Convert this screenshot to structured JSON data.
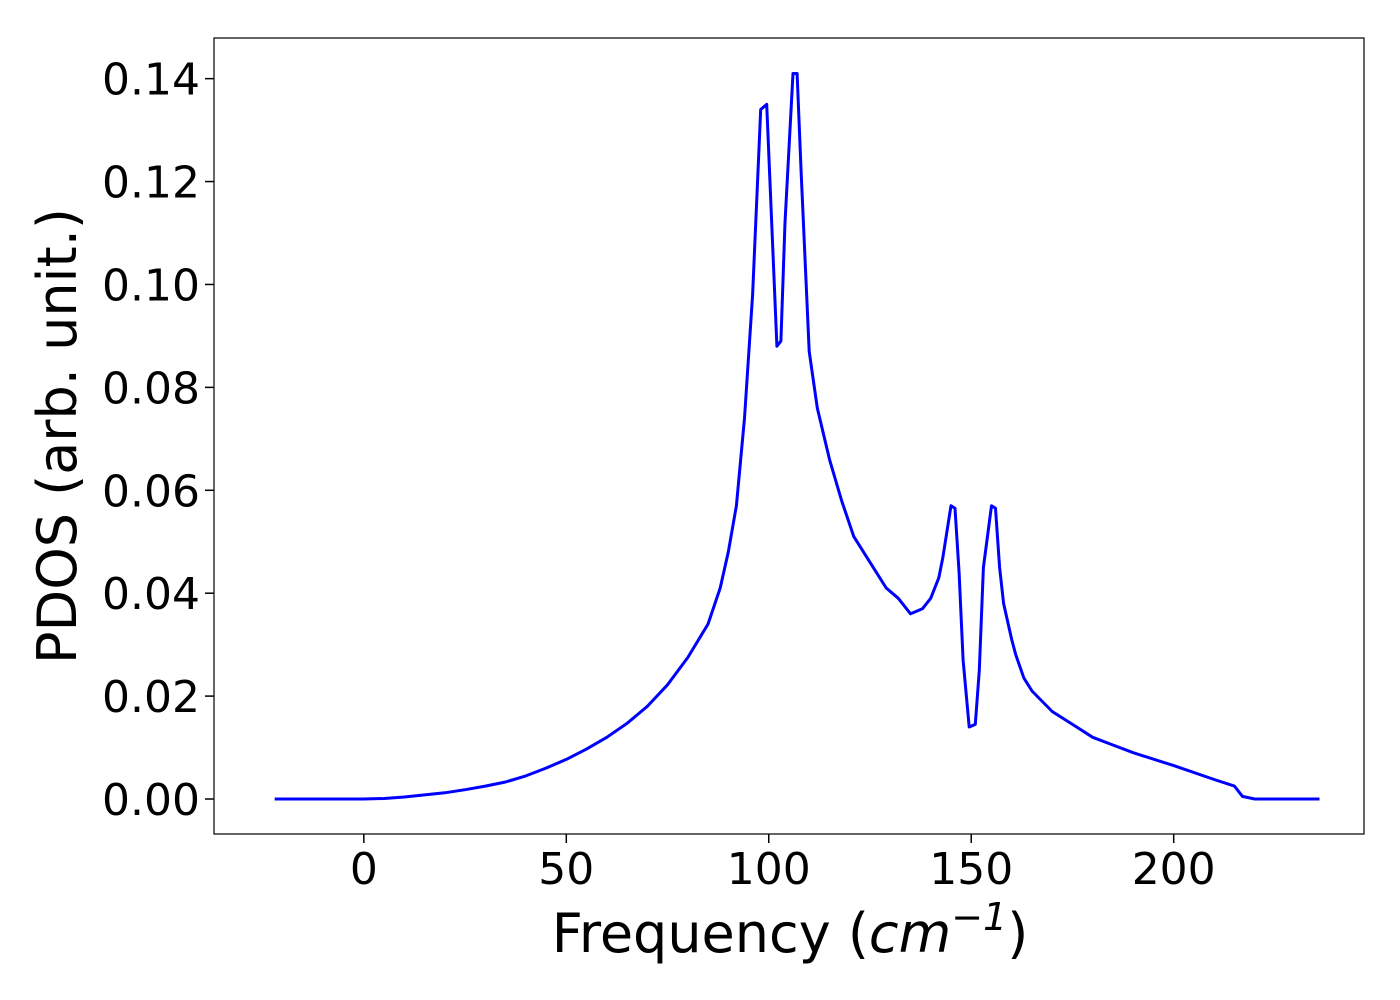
{
  "chart_data": {
    "type": "line",
    "title": "",
    "xlabel": "Frequency ",
    "xlabel_math": "cm",
    "xlabel_exp": "−1",
    "ylabel": "PDOS (arb. unit.)",
    "xlim": [
      -37,
      247
    ],
    "ylim": [
      -0.0068,
      0.1479
    ],
    "x_ticks": [
      0,
      50,
      100,
      150,
      200
    ],
    "x_tick_labels": [
      "0",
      "50",
      "100",
      "150",
      "200"
    ],
    "y_ticks": [
      0.0,
      0.02,
      0.04,
      0.06,
      0.08,
      0.1,
      0.12,
      0.14
    ],
    "y_tick_labels": [
      "0.00",
      "0.02",
      "0.04",
      "0.06",
      "0.08",
      "0.10",
      "0.12",
      "0.14"
    ],
    "grid": false,
    "legend": "none",
    "series": [
      {
        "color": "#0000ff",
        "x": [
          -22,
          0,
          5,
          10,
          15,
          20,
          25,
          30,
          35,
          40,
          45,
          50,
          55,
          60,
          65,
          70,
          75,
          80,
          85,
          88,
          90,
          92,
          94,
          96,
          98,
          99.5,
          102,
          103,
          104,
          106,
          107,
          108,
          110,
          112,
          115,
          118,
          121,
          125,
          129,
          132,
          135,
          136.5,
          138,
          140,
          142,
          143,
          145,
          146,
          147,
          148,
          149.5,
          151,
          152,
          153,
          155,
          156,
          157,
          158,
          160,
          161,
          163,
          165,
          170,
          175,
          180,
          185,
          190,
          200,
          210,
          215,
          217,
          220,
          236
        ],
        "y": [
          0.0,
          0.0,
          0.0001,
          0.0004,
          0.0008,
          0.0012,
          0.0018,
          0.0025,
          0.0033,
          0.0045,
          0.006,
          0.0077,
          0.0097,
          0.012,
          0.0147,
          0.018,
          0.0222,
          0.0275,
          0.034,
          0.041,
          0.048,
          0.057,
          0.074,
          0.098,
          0.134,
          0.135,
          0.088,
          0.089,
          0.112,
          0.141,
          0.141,
          0.122,
          0.087,
          0.076,
          0.066,
          0.058,
          0.051,
          0.046,
          0.041,
          0.039,
          0.036,
          0.0365,
          0.037,
          0.039,
          0.043,
          0.047,
          0.057,
          0.0565,
          0.044,
          0.027,
          0.014,
          0.0145,
          0.025,
          0.045,
          0.057,
          0.0565,
          0.045,
          0.038,
          0.031,
          0.028,
          0.0235,
          0.021,
          0.017,
          0.0145,
          0.012,
          0.0105,
          0.009,
          0.0065,
          0.0038,
          0.0025,
          0.0005,
          0.0,
          0.0
        ]
      }
    ]
  }
}
